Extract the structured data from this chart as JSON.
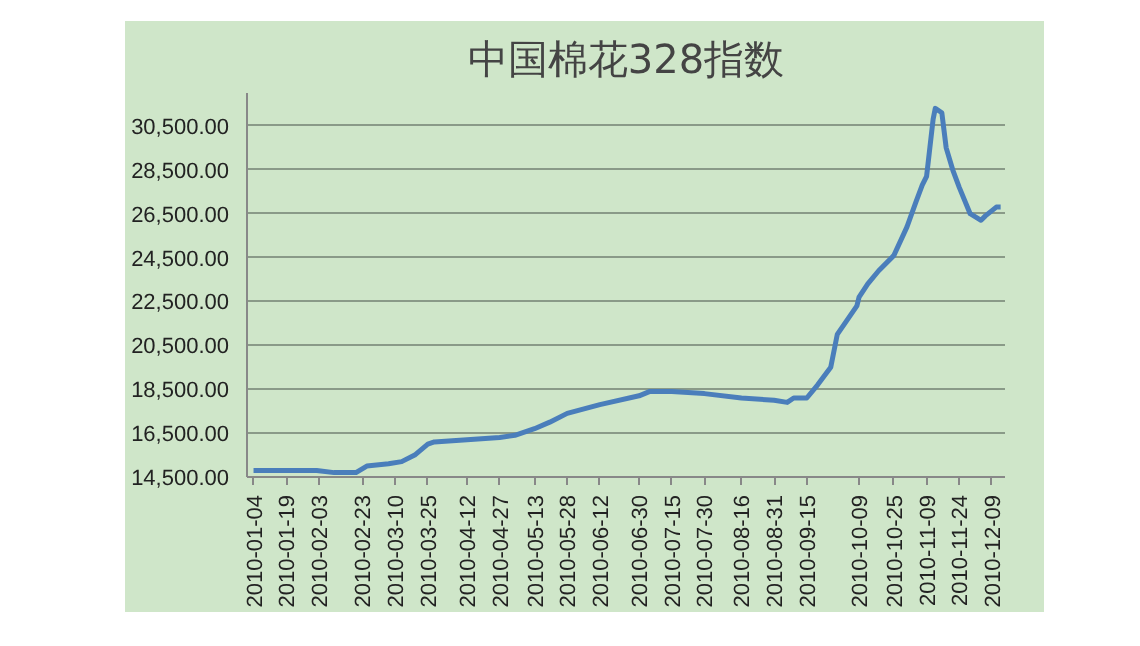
{
  "chart_data": {
    "type": "line",
    "title": "中国棉花328指数",
    "x": [
      "2010-01-04",
      "2010-01-21",
      "2010-02-02",
      "2010-02-10",
      "2010-02-20",
      "2010-02-25",
      "2010-03-07",
      "2010-03-13",
      "2010-03-19",
      "2010-03-25",
      "2010-03-28",
      "2010-04-12",
      "2010-04-27",
      "2010-05-04",
      "2010-05-13",
      "2010-05-20",
      "2010-05-28",
      "2010-06-12",
      "2010-06-30",
      "2010-07-05",
      "2010-07-11",
      "2010-07-15",
      "2010-07-30",
      "2010-08-16",
      "2010-08-31",
      "2010-09-06",
      "2010-09-09",
      "2010-09-15",
      "2010-09-20",
      "2010-09-26",
      "2010-09-29",
      "2010-10-08",
      "2010-10-09",
      "2010-10-13",
      "2010-10-18",
      "2010-10-25",
      "2010-10-31",
      "2010-11-04",
      "2010-11-07",
      "2010-11-09",
      "2010-11-12",
      "2010-11-13",
      "2010-11-16",
      "2010-11-18",
      "2010-11-21",
      "2010-11-24",
      "2010-11-29",
      "2010-12-04",
      "2010-12-06",
      "2010-12-11",
      "2010-12-13"
    ],
    "series": [
      {
        "color": "#4a7ebb",
        "values": [
          14800,
          14800,
          14800,
          14700,
          14700,
          15000,
          15100,
          15200,
          15500,
          16000,
          16100,
          16200,
          16300,
          16400,
          16700,
          17000,
          17400,
          17800,
          18200,
          18400,
          18400,
          18400,
          18300,
          18100,
          18000,
          17900,
          18100,
          18100,
          18700,
          19500,
          21000,
          22300,
          22700,
          23300,
          23900,
          24600,
          25900,
          27000,
          27800,
          28200,
          30800,
          31300,
          31100,
          29500,
          28500,
          27700,
          26500,
          26200,
          26400,
          26800,
          26800
        ]
      }
    ],
    "xlim": [
      "2010-01-01",
      "2010-12-15"
    ],
    "xticks": [
      "2010-01-04",
      "2010-01-19",
      "2010-02-03",
      "2010-02-23",
      "2010-03-10",
      "2010-03-25",
      "2010-04-12",
      "2010-04-27",
      "2010-05-13",
      "2010-05-28",
      "2010-06-12",
      "2010-06-30",
      "2010-07-15",
      "2010-07-30",
      "2010-08-16",
      "2010-08-31",
      "2010-09-15",
      "2010-10-09",
      "2010-10-25",
      "2010-11-09",
      "2010-11-24",
      "2010-12-09"
    ],
    "ylim": [
      14500,
      32000
    ],
    "yticks": [
      {
        "value": 14500,
        "label": "14,500.00"
      },
      {
        "value": 16500,
        "label": "16,500.00"
      },
      {
        "value": 18500,
        "label": "18,500.00"
      },
      {
        "value": 20500,
        "label": "20,500.00"
      },
      {
        "value": 22500,
        "label": "22,500.00"
      },
      {
        "value": 24500,
        "label": "24,500.00"
      },
      {
        "value": 26500,
        "label": "26,500.00"
      },
      {
        "value": 28500,
        "label": "28,500.00"
      },
      {
        "value": 30500,
        "label": "30,500.00"
      }
    ],
    "grid": "y",
    "marker": "none",
    "line_style": "solid"
  }
}
